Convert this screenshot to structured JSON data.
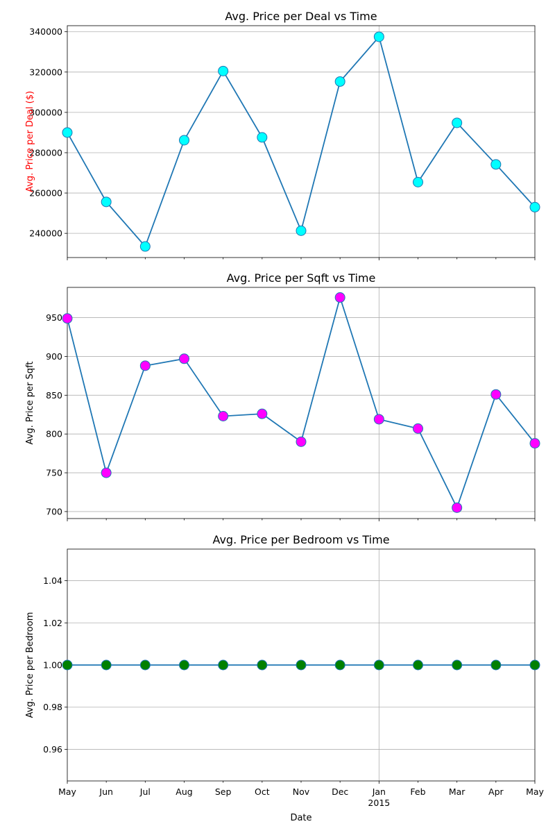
{
  "chart_data": [
    {
      "type": "line",
      "title": "Avg. Price per Deal vs Time",
      "ylabel": "Avg. Price per Deal ($)",
      "ylabel_color": "#ff0000",
      "xlabel": "",
      "x": [
        "2014-05",
        "2014-06",
        "2014-07",
        "2014-08",
        "2014-09",
        "2014-10",
        "2014-11",
        "2014-12",
        "2015-01",
        "2015-02",
        "2015-03",
        "2015-04",
        "2015-05"
      ],
      "xtick_labels": [],
      "values": [
        290000,
        255600,
        233500,
        286200,
        320500,
        287600,
        241300,
        315300,
        337500,
        265400,
        294800,
        274200,
        253000
      ],
      "ylim": [
        228000,
        343000
      ],
      "yticks": [
        "240000",
        "260000",
        "280000",
        "300000",
        "320000",
        "340000"
      ],
      "line_color": "#1f77b4",
      "marker_color": "#00ffff",
      "grid": true
    },
    {
      "type": "line",
      "title": "Avg. Price per Sqft vs Time",
      "ylabel": "Avg. Price per Sqft",
      "ylabel_color": "#000000",
      "xlabel": "",
      "x": [
        "2014-05",
        "2014-06",
        "2014-07",
        "2014-08",
        "2014-09",
        "2014-10",
        "2014-11",
        "2014-12",
        "2015-01",
        "2015-02",
        "2015-03",
        "2015-04",
        "2015-05"
      ],
      "xtick_labels": [],
      "values": [
        949,
        750,
        888,
        897,
        823,
        826,
        790,
        976,
        819,
        807,
        705,
        851,
        788
      ],
      "ylim": [
        691,
        989
      ],
      "yticks": [
        "700",
        "750",
        "800",
        "850",
        "900",
        "950"
      ],
      "line_color": "#1f77b4",
      "marker_color": "#ff00ff",
      "grid": true
    },
    {
      "type": "line",
      "title": "Avg. Price per Bedroom vs Time",
      "ylabel": "Avg. Price per Bedroom",
      "ylabel_color": "#000000",
      "xlabel": "Date",
      "x": [
        "2014-05",
        "2014-06",
        "2014-07",
        "2014-08",
        "2014-09",
        "2014-10",
        "2014-11",
        "2014-12",
        "2015-01",
        "2015-02",
        "2015-03",
        "2015-04",
        "2015-05"
      ],
      "xtick_labels": [
        "May",
        "Jun",
        "Jul",
        "Aug",
        "Sep",
        "Oct",
        "Nov",
        "Dec",
        "Jan",
        "Feb",
        "Mar",
        "Apr",
        "May"
      ],
      "xtick_sublabel": "2015",
      "values": [
        1,
        1,
        1,
        1,
        1,
        1,
        1,
        1,
        1,
        1,
        1,
        1,
        1
      ],
      "ylim": [
        0.945,
        1.055
      ],
      "yticks": [
        "0.96",
        "0.98",
        "1.00",
        "1.02",
        "1.04"
      ],
      "line_color": "#1f77b4",
      "marker_color": "#008000",
      "grid": true
    }
  ]
}
